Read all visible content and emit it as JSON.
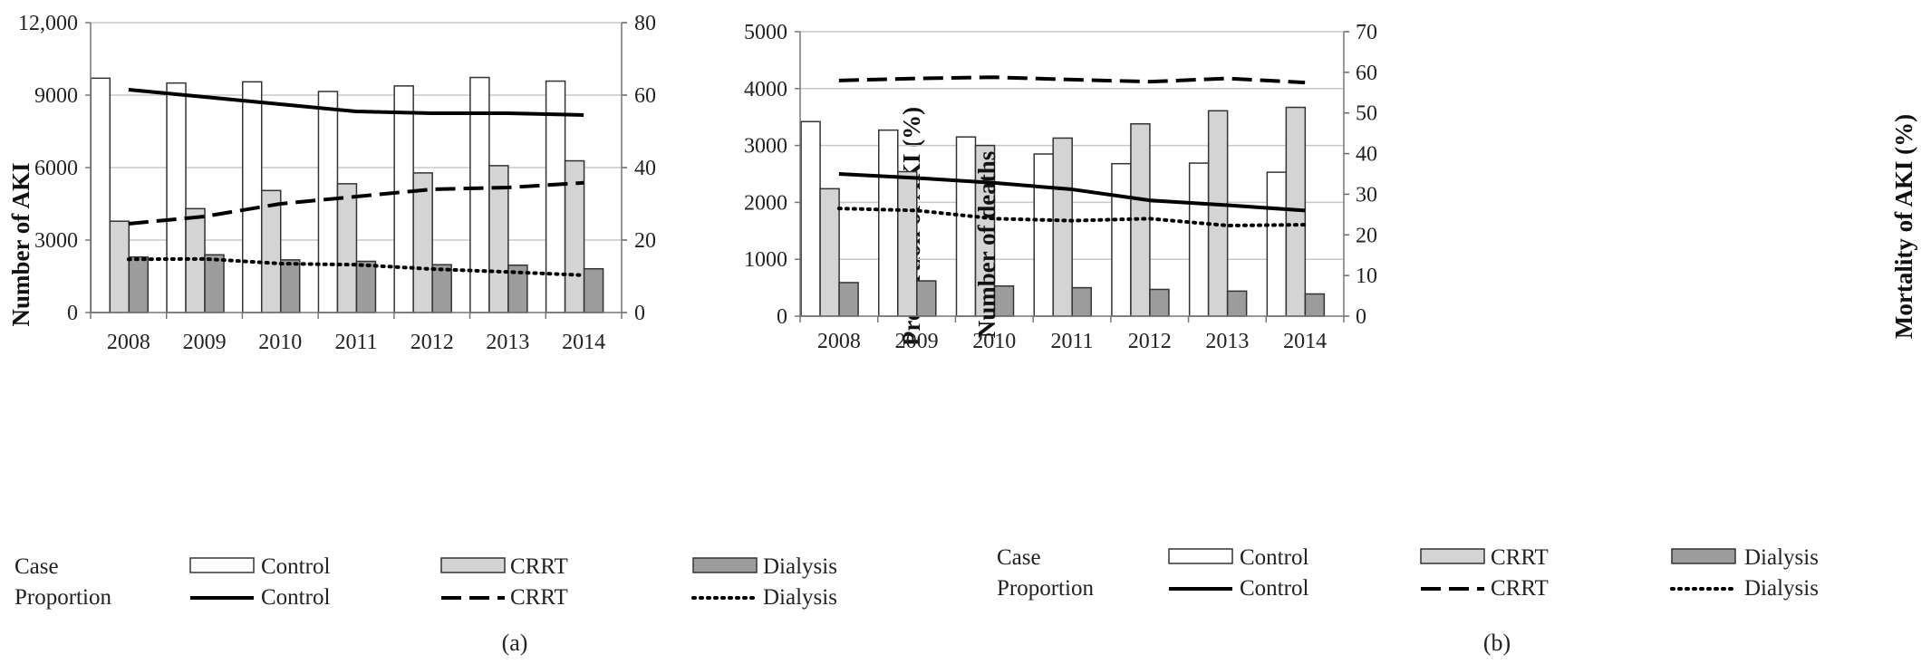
{
  "chart_data": [
    {
      "type": "bar+line",
      "caption": "(a)",
      "categories": [
        "2008",
        "2009",
        "2010",
        "2011",
        "2012",
        "2013",
        "2014"
      ],
      "ylabel": "Number of AKI",
      "y2label": "Proportion of AKI (%)",
      "ylim": [
        0,
        12000
      ],
      "y2lim": [
        0,
        80
      ],
      "yticks": [
        "0",
        "3000",
        "6000",
        "9000",
        "12,000"
      ],
      "y2ticks": [
        "0",
        "20",
        "40",
        "60",
        "80"
      ],
      "grid": true,
      "bars": [
        {
          "name": "Control",
          "color": "#ffffff",
          "values": [
            9700,
            9500,
            9550,
            9150,
            9380,
            9730,
            9580
          ]
        },
        {
          "name": "CRRT",
          "color": "#d4d4d4",
          "values": [
            3780,
            4300,
            5050,
            5330,
            5780,
            6080,
            6280
          ]
        },
        {
          "name": "Dialysis",
          "color": "#9c9c9c",
          "values": [
            2300,
            2390,
            2180,
            2120,
            1980,
            1960,
            1810
          ]
        }
      ],
      "lines": [
        {
          "name": "Control",
          "style": "solid",
          "values": [
            61.5,
            59.5,
            57.5,
            55.5,
            55.0,
            55.0,
            54.5
          ]
        },
        {
          "name": "CRRT",
          "style": "dashed",
          "values": [
            24.5,
            26.5,
            30.0,
            32.0,
            34.0,
            34.5,
            35.8
          ]
        },
        {
          "name": "Dialysis",
          "style": "dotted",
          "values": [
            14.7,
            14.8,
            13.5,
            13.2,
            12.0,
            11.2,
            10.3
          ]
        }
      ],
      "legend": {
        "case_label": "Case",
        "proportion_label": "Proportion",
        "case_items": [
          "Control",
          "CRRT",
          "Dialysis"
        ],
        "proportion_items": [
          "Control",
          "CRRT",
          "Dialysis"
        ]
      }
    },
    {
      "type": "bar+line",
      "caption": "(b)",
      "categories": [
        "2008",
        "2009",
        "2010",
        "2011",
        "2012",
        "2013",
        "2014"
      ],
      "ylabel": "Number of deaths",
      "y2label": "Mortality of AKI (%)",
      "ylim": [
        0,
        5000
      ],
      "y2lim": [
        0,
        70
      ],
      "yticks": [
        "0",
        "1000",
        "2000",
        "3000",
        "4000",
        "5000"
      ],
      "y2ticks": [
        "0",
        "10",
        "20",
        "30",
        "40",
        "50",
        "60",
        "70"
      ],
      "grid": true,
      "bars": [
        {
          "name": "Control",
          "color": "#ffffff",
          "values": [
            3420,
            3270,
            3150,
            2850,
            2680,
            2690,
            2530
          ]
        },
        {
          "name": "CRRT",
          "color": "#d4d4d4",
          "values": [
            2240,
            2540,
            3000,
            3130,
            3380,
            3610,
            3670
          ]
        },
        {
          "name": "Dialysis",
          "color": "#9c9c9c",
          "values": [
            590,
            620,
            530,
            500,
            470,
            440,
            390
          ]
        }
      ],
      "lines": [
        {
          "name": "Control",
          "style": "solid",
          "values": [
            35.0,
            34.0,
            32.8,
            31.2,
            28.5,
            27.3,
            26.0
          ]
        },
        {
          "name": "CRRT",
          "style": "dashed",
          "values": [
            58.0,
            58.5,
            58.8,
            58.2,
            57.7,
            58.5,
            57.5
          ]
        },
        {
          "name": "Dialysis",
          "style": "dotted",
          "values": [
            26.5,
            26.0,
            24.0,
            23.5,
            24.0,
            22.3,
            22.5
          ]
        }
      ],
      "legend": {
        "case_label": "Case",
        "proportion_label": "Proportion",
        "case_items": [
          "Control",
          "CRRT",
          "Dialysis"
        ],
        "proportion_items": [
          "Control",
          "CRRT",
          "Dialysis"
        ]
      }
    }
  ]
}
